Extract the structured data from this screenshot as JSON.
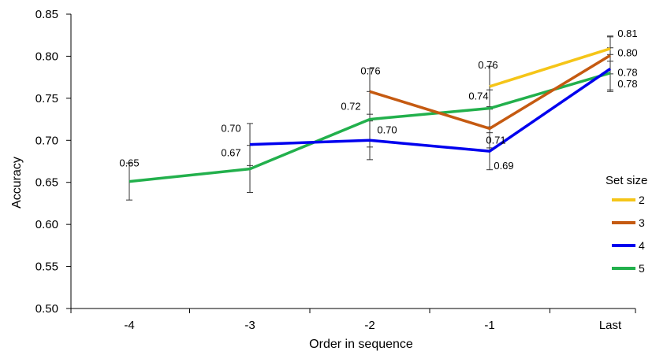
{
  "chart_data": {
    "type": "line",
    "xlabel": "Order in sequence",
    "ylabel": "Accuracy",
    "categories": [
      "-4",
      "-3",
      "-2",
      "-1",
      "Last"
    ],
    "ylim": [
      0.5,
      0.85
    ],
    "yticks": [
      "0.50",
      "0.55",
      "0.60",
      "0.65",
      "0.70",
      "0.75",
      "0.80",
      "0.85"
    ],
    "grid": false,
    "legend": {
      "title": "Set size",
      "placement": "right",
      "entries": [
        "2",
        "3",
        "4",
        "5"
      ]
    },
    "series": [
      {
        "name": "2",
        "color": "#F5C518",
        "values": [
          null,
          null,
          null,
          0.764,
          0.809
        ],
        "labels": [
          null,
          null,
          null,
          "0.76",
          "0.81"
        ],
        "err": [
          null,
          null,
          null,
          0.024,
          0.015
        ]
      },
      {
        "name": "3",
        "color": "#C55A11",
        "values": [
          null,
          null,
          0.758,
          0.714,
          0.801
        ],
        "labels": [
          null,
          null,
          "0.76",
          "0.71",
          "0.80"
        ],
        "err": [
          null,
          null,
          0.027,
          0.023,
          0.022
        ]
      },
      {
        "name": "4",
        "color": "#0000EE",
        "values": [
          null,
          0.695,
          0.7,
          0.687,
          0.785
        ],
        "labels": [
          null,
          "0.70",
          "0.70",
          "0.69",
          "0.78"
        ],
        "err": [
          null,
          0.025,
          0.023,
          0.022,
          0.025
        ]
      },
      {
        "name": "5",
        "color": "#22B04C",
        "values": [
          0.651,
          0.666,
          0.725,
          0.738,
          0.78
        ],
        "labels": [
          "0.65",
          "0.67",
          "0.72",
          "0.74",
          "0.78"
        ],
        "err": [
          0.022,
          0.028,
          0.033,
          0.022,
          0.022
        ]
      }
    ]
  }
}
